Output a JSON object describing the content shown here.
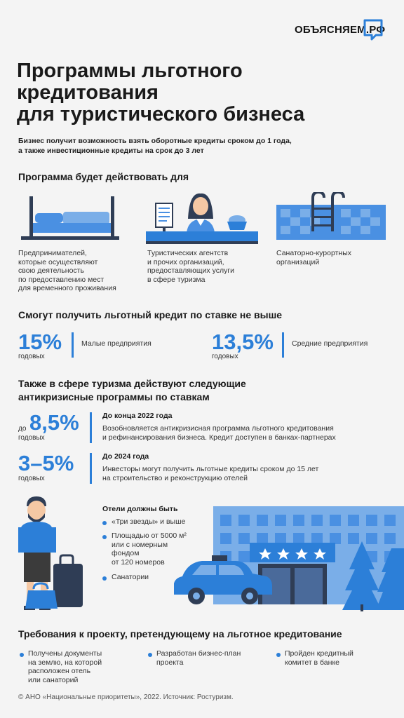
{
  "logo": {
    "text": "ОБЪЯСНЯЕМ.РФ"
  },
  "title": {
    "line1": "Программы льготного",
    "line2": "кредитования",
    "line3": "для туристического бизнеса"
  },
  "subtitle": {
    "line1": "Бизнес получит возможность взять оборотные кредиты сроком до 1 года,",
    "line2": "а также инвестиционные кредиты на срок до 3 лет"
  },
  "section_for": {
    "heading": "Программа будет действовать для",
    "items": [
      {
        "icon": "bed-icon",
        "lines": [
          "Предпринимателей,",
          "которые осуществляют",
          "свою деятельность",
          "по предоставлению мест",
          "для временного проживания"
        ]
      },
      {
        "icon": "travel-agent-icon",
        "lines": [
          "Туристических агентств",
          "и прочих организаций,",
          "предоставляющих услуги",
          "в сфере туризма"
        ]
      },
      {
        "icon": "pool-icon",
        "lines": [
          "Санаторно-курортных",
          "организаций"
        ]
      }
    ]
  },
  "section_rate": {
    "heading": "Смогут получить льготный кредит по ставке не выше",
    "items": [
      {
        "value": "15%",
        "unit": "годовых",
        "label": "Малые предприятия"
      },
      {
        "value": "13,5%",
        "unit": "годовых",
        "label": "Средние предприятия"
      }
    ]
  },
  "section_anticrisis": {
    "heading_line1": "Также в сфере туризма действуют следующие",
    "heading_line2": "антикризисные программы по ставкам",
    "items": [
      {
        "prefix": "до",
        "value": "8,5%",
        "unit": "годовых",
        "term": "До конца 2022 года",
        "lines": [
          "Возобновляется антикризисная программа льготного кредитования",
          "и рефинансирования бизнеса. Кредит доступен в банках-партнерах"
        ]
      },
      {
        "prefix": "",
        "value": "3–5%",
        "unit": "годовых",
        "term": "До 2024 года",
        "lines": [
          "Инвесторы могут получить льготные кредиты сроком до 15 лет",
          "на строительство и реконструкцию отелей"
        ]
      }
    ]
  },
  "hotels": {
    "heading": "Отели должны быть",
    "items": [
      {
        "lines": [
          "«Три звезды» и выше"
        ]
      },
      {
        "lines": [
          "Площадью от 5000 м²",
          "или с номерным",
          "фондом",
          "от 120 номеров"
        ]
      },
      {
        "lines": [
          "Санатории"
        ]
      }
    ]
  },
  "requirements": {
    "heading": "Требования к проекту, претендующему на льготное кредитование",
    "items": [
      {
        "lines": [
          "Получены документы",
          "на землю, на которой",
          "расположен отель",
          "или санаторий"
        ]
      },
      {
        "lines": [
          "Разработан бизнес-план",
          "проекта"
        ]
      },
      {
        "lines": [
          "Пройден кредитный",
          "комитет в банке"
        ]
      }
    ]
  },
  "footer": "© АНО «Национальные приоритеты», 2022. Источник: Ростуризм.",
  "colors": {
    "accent": "#2c7fd8",
    "light_blue": "#7aaee8",
    "dark": "#2f3d55",
    "background": "#f4f4f4"
  }
}
